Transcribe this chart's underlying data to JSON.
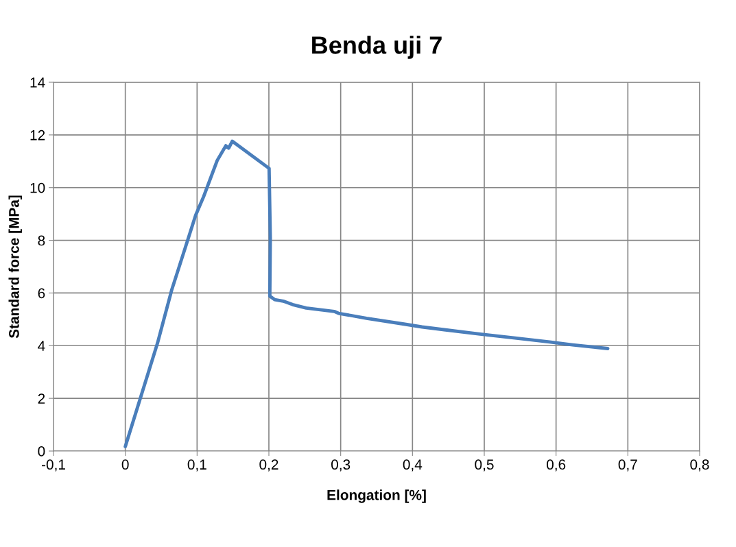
{
  "chart_data": {
    "type": "line",
    "title": "Benda uji 7",
    "xlabel": "Elongation [%]",
    "ylabel": "Standard force [MPa]",
    "series": [
      {
        "color": "#4a7ebb",
        "x": [
          0,
          0.045,
          0.0645,
          0.098,
          0.109,
          0.128,
          0.14,
          0.144,
          0.149,
          0.2003,
          0.202,
          0.2013,
          0.208,
          0.22,
          0.233,
          0.252,
          0.291,
          0.297,
          0.336,
          0.388,
          0.4135,
          0.446,
          0.494,
          0.543,
          0.591,
          0.623,
          0.672
        ],
        "values": [
          0.17,
          4.11,
          6.1,
          8.95,
          9.65,
          11.03,
          11.59,
          11.5,
          11.76,
          10.73,
          8.09,
          5.88,
          5.75,
          5.69,
          5.56,
          5.43,
          5.3,
          5.23,
          5.04,
          4.82,
          4.71,
          4.6,
          4.44,
          4.29,
          4.14,
          4.03,
          3.89
        ]
      }
    ],
    "xlim": [
      -0.1,
      0.8
    ],
    "xticks": [
      {
        "value": -0.1,
        "label": "-0,1"
      },
      0,
      {
        "value": 0.1,
        "label": "0,1"
      },
      {
        "value": 0.2,
        "label": "0,2"
      },
      {
        "value": 0.3,
        "label": "0,3"
      },
      {
        "value": 0.4,
        "label": "0,4"
      },
      {
        "value": 0.5,
        "label": "0,5"
      },
      {
        "value": 0.6,
        "label": "0,6"
      },
      {
        "value": 0.7,
        "label": "0,7"
      },
      {
        "value": 0.8,
        "label": "0,8"
      }
    ],
    "ylim": [
      0,
      14
    ],
    "yticks": [
      0,
      2,
      4,
      6,
      8,
      10,
      12,
      14
    ],
    "grid": true,
    "marker": "none",
    "line_style": "solid",
    "legend": false
  }
}
